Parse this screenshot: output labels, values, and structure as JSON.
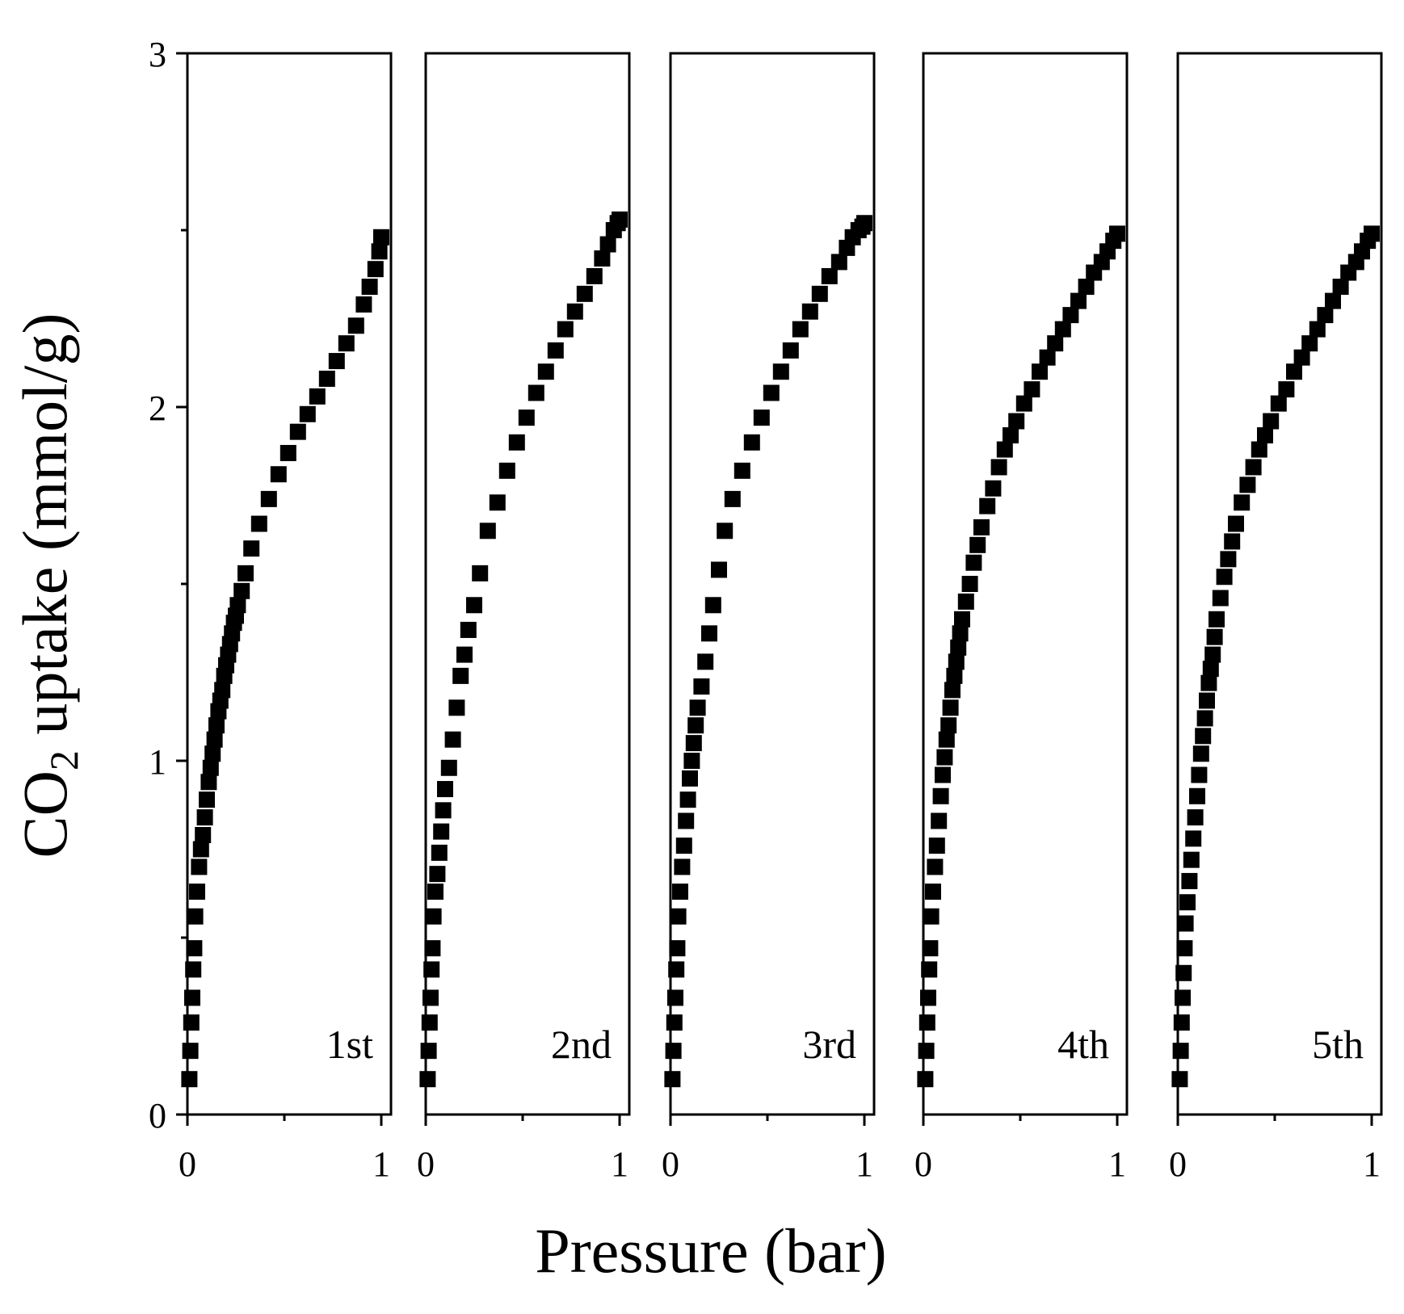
{
  "chart_data": {
    "type": "scatter",
    "title": "",
    "xlabel": "Pressure (bar)",
    "ylabel": {
      "prefix": "CO",
      "subscript": "2",
      "suffix": " uptake (mmol/g)"
    },
    "xlim": [
      0,
      1.05
    ],
    "ylim": [
      0,
      3
    ],
    "x_ticks": [
      0,
      1
    ],
    "x_tick_labels": [
      "0",
      "1"
    ],
    "x_minor_ticks": [
      0.5
    ],
    "y_ticks": [
      0,
      1,
      2,
      3
    ],
    "y_tick_labels": [
      "0",
      "1",
      "2",
      "3"
    ],
    "y_minor_ticks": [
      0.5,
      1.5,
      2.5
    ],
    "marker": "square",
    "marker_color": "#000000",
    "panels": [
      {
        "label": "1st",
        "x": [
          0.01,
          0.015,
          0.02,
          0.025,
          0.03,
          0.035,
          0.04,
          0.05,
          0.06,
          0.07,
          0.08,
          0.09,
          0.1,
          0.11,
          0.12,
          0.13,
          0.14,
          0.15,
          0.16,
          0.17,
          0.18,
          0.19,
          0.2,
          0.21,
          0.22,
          0.23,
          0.24,
          0.25,
          0.26,
          0.28,
          0.3,
          0.33,
          0.37,
          0.42,
          0.47,
          0.52,
          0.57,
          0.62,
          0.67,
          0.72,
          0.77,
          0.82,
          0.87,
          0.91,
          0.94,
          0.97,
          0.99,
          1.0
        ],
        "y": [
          0.1,
          0.18,
          0.26,
          0.33,
          0.41,
          0.47,
          0.56,
          0.63,
          0.7,
          0.75,
          0.79,
          0.84,
          0.89,
          0.94,
          0.98,
          1.02,
          1.06,
          1.1,
          1.14,
          1.17,
          1.2,
          1.24,
          1.27,
          1.3,
          1.33,
          1.36,
          1.39,
          1.41,
          1.44,
          1.48,
          1.53,
          1.6,
          1.67,
          1.74,
          1.81,
          1.87,
          1.93,
          1.98,
          2.03,
          2.08,
          2.13,
          2.18,
          2.23,
          2.29,
          2.34,
          2.39,
          2.44,
          2.48
        ]
      },
      {
        "label": "2nd",
        "x": [
          0.01,
          0.015,
          0.02,
          0.025,
          0.03,
          0.035,
          0.04,
          0.05,
          0.06,
          0.07,
          0.08,
          0.09,
          0.1,
          0.12,
          0.14,
          0.16,
          0.18,
          0.2,
          0.22,
          0.25,
          0.28,
          0.32,
          0.37,
          0.42,
          0.47,
          0.52,
          0.57,
          0.62,
          0.67,
          0.72,
          0.77,
          0.82,
          0.87,
          0.91,
          0.94,
          0.97,
          0.99,
          1.0
        ],
        "y": [
          0.1,
          0.18,
          0.26,
          0.33,
          0.41,
          0.47,
          0.56,
          0.63,
          0.68,
          0.74,
          0.8,
          0.86,
          0.92,
          0.98,
          1.06,
          1.15,
          1.24,
          1.3,
          1.37,
          1.44,
          1.53,
          1.65,
          1.73,
          1.82,
          1.9,
          1.97,
          2.04,
          2.1,
          2.16,
          2.22,
          2.27,
          2.32,
          2.37,
          2.42,
          2.46,
          2.5,
          2.52,
          2.53
        ]
      },
      {
        "label": "3rd",
        "x": [
          0.01,
          0.015,
          0.02,
          0.025,
          0.03,
          0.035,
          0.04,
          0.05,
          0.06,
          0.07,
          0.08,
          0.09,
          0.1,
          0.11,
          0.12,
          0.13,
          0.14,
          0.16,
          0.18,
          0.2,
          0.22,
          0.25,
          0.28,
          0.32,
          0.37,
          0.42,
          0.47,
          0.52,
          0.57,
          0.62,
          0.67,
          0.72,
          0.77,
          0.82,
          0.87,
          0.91,
          0.94,
          0.97,
          0.99,
          1.0
        ],
        "y": [
          0.1,
          0.18,
          0.26,
          0.33,
          0.41,
          0.47,
          0.56,
          0.63,
          0.7,
          0.76,
          0.83,
          0.89,
          0.95,
          1.0,
          1.05,
          1.1,
          1.15,
          1.21,
          1.28,
          1.36,
          1.44,
          1.54,
          1.65,
          1.74,
          1.82,
          1.9,
          1.97,
          2.04,
          2.1,
          2.16,
          2.22,
          2.27,
          2.32,
          2.37,
          2.41,
          2.45,
          2.48,
          2.5,
          2.51,
          2.52
        ]
      },
      {
        "label": "4th",
        "x": [
          0.01,
          0.015,
          0.02,
          0.025,
          0.03,
          0.035,
          0.04,
          0.05,
          0.06,
          0.07,
          0.08,
          0.09,
          0.1,
          0.11,
          0.12,
          0.13,
          0.14,
          0.15,
          0.16,
          0.17,
          0.18,
          0.19,
          0.2,
          0.22,
          0.24,
          0.26,
          0.28,
          0.3,
          0.33,
          0.36,
          0.39,
          0.42,
          0.45,
          0.48,
          0.52,
          0.56,
          0.6,
          0.64,
          0.68,
          0.72,
          0.76,
          0.8,
          0.84,
          0.88,
          0.92,
          0.95,
          0.98,
          1.0
        ],
        "y": [
          0.1,
          0.18,
          0.26,
          0.33,
          0.41,
          0.47,
          0.56,
          0.63,
          0.7,
          0.76,
          0.83,
          0.9,
          0.96,
          1.01,
          1.06,
          1.1,
          1.15,
          1.2,
          1.24,
          1.28,
          1.32,
          1.36,
          1.4,
          1.45,
          1.5,
          1.56,
          1.61,
          1.66,
          1.72,
          1.77,
          1.83,
          1.88,
          1.92,
          1.96,
          2.01,
          2.05,
          2.1,
          2.14,
          2.18,
          2.22,
          2.26,
          2.3,
          2.34,
          2.38,
          2.41,
          2.44,
          2.47,
          2.49
        ]
      },
      {
        "label": "5th",
        "x": [
          0.01,
          0.015,
          0.02,
          0.025,
          0.03,
          0.035,
          0.04,
          0.05,
          0.06,
          0.07,
          0.08,
          0.09,
          0.1,
          0.11,
          0.12,
          0.13,
          0.14,
          0.15,
          0.16,
          0.17,
          0.18,
          0.19,
          0.2,
          0.22,
          0.24,
          0.26,
          0.28,
          0.3,
          0.33,
          0.36,
          0.39,
          0.42,
          0.45,
          0.48,
          0.52,
          0.56,
          0.6,
          0.64,
          0.68,
          0.72,
          0.76,
          0.8,
          0.84,
          0.88,
          0.92,
          0.95,
          0.98,
          1.0
        ],
        "y": [
          0.1,
          0.18,
          0.26,
          0.33,
          0.4,
          0.47,
          0.54,
          0.6,
          0.66,
          0.72,
          0.78,
          0.84,
          0.9,
          0.96,
          1.02,
          1.07,
          1.12,
          1.17,
          1.22,
          1.26,
          1.3,
          1.35,
          1.4,
          1.46,
          1.52,
          1.57,
          1.62,
          1.67,
          1.73,
          1.78,
          1.83,
          1.88,
          1.92,
          1.96,
          2.01,
          2.05,
          2.1,
          2.14,
          2.18,
          2.22,
          2.26,
          2.3,
          2.34,
          2.38,
          2.41,
          2.44,
          2.47,
          2.49
        ]
      }
    ]
  }
}
